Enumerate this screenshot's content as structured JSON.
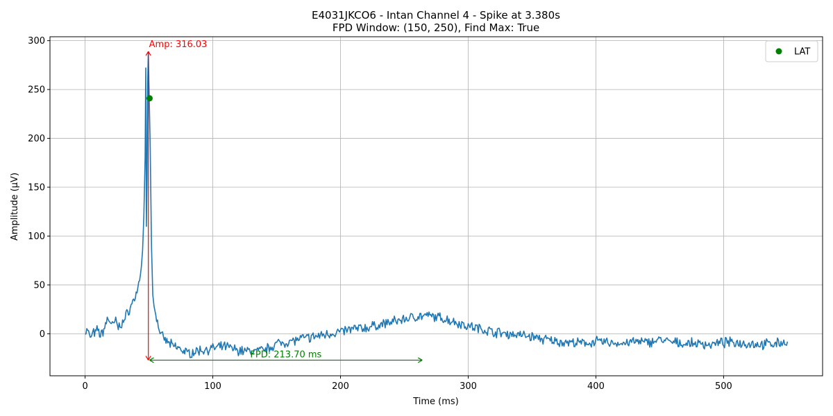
{
  "chart_data": {
    "type": "line",
    "title_line1": "E4031JKCO6 - Intan Channel 4 - Spike at 3.380s",
    "title_line2": "FPD Window: (150, 250), Find Max: True",
    "xlabel": "Time (ms)",
    "ylabel": "Amplitude (µV)",
    "xlim": [
      -27.5,
      577.5
    ],
    "ylim": [
      -43,
      304
    ],
    "xticks": [
      0,
      100,
      200,
      300,
      400,
      500
    ],
    "yticks": [
      0,
      50,
      100,
      150,
      200,
      250,
      300
    ],
    "grid": true,
    "legend_placement": "top-right",
    "legend_entries": [
      {
        "label": "LAT",
        "color": "#008000",
        "marker": "circle"
      }
    ],
    "series": [
      {
        "color": "#1f77b4",
        "anchor_points": [
          [
            0,
            2
          ],
          [
            2,
            4
          ],
          [
            4,
            -5
          ],
          [
            6,
            1
          ],
          [
            8,
            0
          ],
          [
            10,
            5
          ],
          [
            12,
            -2
          ],
          [
            14,
            2
          ],
          [
            16,
            10
          ],
          [
            18,
            16
          ],
          [
            20,
            12
          ],
          [
            22,
            8
          ],
          [
            24,
            14
          ],
          [
            26,
            6
          ],
          [
            28,
            10
          ],
          [
            30,
            12
          ],
          [
            32,
            18
          ],
          [
            34,
            24
          ],
          [
            36,
            28
          ],
          [
            38,
            35
          ],
          [
            40,
            40
          ],
          [
            42,
            52
          ],
          [
            44,
            68
          ],
          [
            45,
            85
          ],
          [
            46,
            120
          ],
          [
            47,
            180
          ],
          [
            47.5,
            272
          ],
          [
            48,
            110
          ],
          [
            48.5,
            160
          ],
          [
            49,
            255
          ],
          [
            49.5,
            288
          ],
          [
            50,
            255
          ],
          [
            51,
            190
          ],
          [
            52,
            90
          ],
          [
            53,
            40
          ],
          [
            54,
            28
          ],
          [
            56,
            15
          ],
          [
            58,
            5
          ],
          [
            60,
            -3
          ],
          [
            64,
            -8
          ],
          [
            68,
            -12
          ],
          [
            74,
            -15
          ],
          [
            80,
            -20
          ],
          [
            90,
            -17
          ],
          [
            100,
            -15
          ],
          [
            110,
            -13
          ],
          [
            120,
            -17
          ],
          [
            130,
            -18
          ],
          [
            140,
            -17
          ],
          [
            150,
            -10
          ],
          [
            160,
            -8
          ],
          [
            170,
            -5
          ],
          [
            180,
            -3
          ],
          [
            190,
            0
          ],
          [
            200,
            2
          ],
          [
            210,
            5
          ],
          [
            220,
            6
          ],
          [
            230,
            9
          ],
          [
            240,
            12
          ],
          [
            250,
            15
          ],
          [
            260,
            18
          ],
          [
            270,
            18
          ],
          [
            280,
            16
          ],
          [
            290,
            12
          ],
          [
            300,
            8
          ],
          [
            310,
            5
          ],
          [
            320,
            2
          ],
          [
            330,
            0
          ],
          [
            340,
            -1
          ],
          [
            350,
            -3
          ],
          [
            360,
            -6
          ],
          [
            370,
            -8
          ],
          [
            380,
            -9
          ],
          [
            390,
            -10
          ],
          [
            400,
            -8
          ],
          [
            410,
            -9
          ],
          [
            420,
            -10
          ],
          [
            430,
            -8
          ],
          [
            440,
            -9
          ],
          [
            450,
            -6
          ],
          [
            460,
            -9
          ],
          [
            470,
            -10
          ],
          [
            480,
            -10
          ],
          [
            490,
            -11
          ],
          [
            500,
            -9
          ],
          [
            510,
            -9
          ],
          [
            520,
            -10
          ],
          [
            530,
            -11
          ],
          [
            540,
            -10
          ],
          [
            550,
            -8
          ]
        ],
        "noise_amplitude": 4
      }
    ],
    "lat_point": {
      "x": 50.5,
      "y": 241,
      "label": "LAT",
      "color": "#008000"
    },
    "amplitude_annotation": {
      "x": 49.5,
      "y_start": -27,
      "y_end": 289,
      "label": "Amp: 316.03",
      "color": "#ff0000"
    },
    "fpd_annotation": {
      "x_start": 50.5,
      "x_end": 264,
      "y": -27,
      "label": "FPD: 213.70 ms",
      "color": "#008000"
    }
  }
}
